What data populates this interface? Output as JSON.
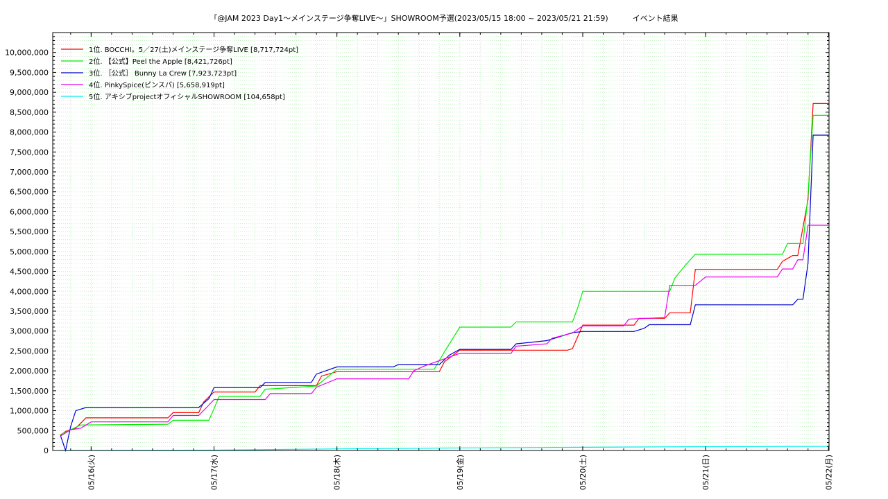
{
  "chart_data": {
    "type": "line",
    "title": "「@JAM 2023 Day1〜メインステージ争奪LIVE〜」SHOWROOM予選(2023/05/15 18:00 ~ 2023/05/21 21:59)          イベント結果",
    "xlabel": "",
    "ylabel": "",
    "x_range": [
      "2023-05-15 18:00",
      "2023-05-22 00:00"
    ],
    "ylim": [
      0,
      10500000
    ],
    "grid": true,
    "legend_position": "top-left",
    "y_ticks": [
      {
        "value": 0,
        "label": "0"
      },
      {
        "value": 500000,
        "label": "500,000"
      },
      {
        "value": 1000000,
        "label": "1,000,000"
      },
      {
        "value": 1500000,
        "label": "1,500,000"
      },
      {
        "value": 2000000,
        "label": "2,000,000"
      },
      {
        "value": 2500000,
        "label": "2,500,000"
      },
      {
        "value": 3000000,
        "label": "3,000,000"
      },
      {
        "value": 3500000,
        "label": "3,500,000"
      },
      {
        "value": 4000000,
        "label": "4,000,000"
      },
      {
        "value": 4500000,
        "label": "4,500,000"
      },
      {
        "value": 5000000,
        "label": "5,000,000"
      },
      {
        "value": 5500000,
        "label": "5,500,000"
      },
      {
        "value": 6000000,
        "label": "6,000,000"
      },
      {
        "value": 6500000,
        "label": "6,500,000"
      },
      {
        "value": 7000000,
        "label": "7,000,000"
      },
      {
        "value": 7500000,
        "label": "7,500,000"
      },
      {
        "value": 8000000,
        "label": "8,000,000"
      },
      {
        "value": 8500000,
        "label": "8,500,000"
      },
      {
        "value": 9000000,
        "label": "9,000,000"
      },
      {
        "value": 9500000,
        "label": "9,500,000"
      },
      {
        "value": 10000000,
        "label": "10,000,000"
      }
    ],
    "x_ticks": [
      {
        "x": "2023-05-16 00:00",
        "label": "05/16(火)"
      },
      {
        "x": "2023-05-17 00:00",
        "label": "05/17(水)"
      },
      {
        "x": "2023-05-18 00:00",
        "label": "05/18(木)"
      },
      {
        "x": "2023-05-19 00:00",
        "label": "05/19(金)"
      },
      {
        "x": "2023-05-20 00:00",
        "label": "05/20(土)"
      },
      {
        "x": "2023-05-21 00:00",
        "label": "05/21(日)"
      },
      {
        "x": "2023-05-22 00:00",
        "label": "05/22(月)"
      }
    ],
    "series": [
      {
        "name": "1位. BOCCHI。5／27(土)メインステージ争奪LIVE [8,717,724pt]",
        "color": "#ff0000",
        "points": [
          [
            "2023-05-15 18:00",
            380000
          ],
          [
            "2023-05-15 19:00",
            480000
          ],
          [
            "2023-05-15 21:00",
            560000
          ],
          [
            "2023-05-15 23:00",
            820000
          ],
          [
            "2023-05-16 15:00",
            820000
          ],
          [
            "2023-05-16 16:00",
            950000
          ],
          [
            "2023-05-16 21:00",
            950000
          ],
          [
            "2023-05-16 22:00",
            1220000
          ],
          [
            "2023-05-17 00:00",
            1470000
          ],
          [
            "2023-05-17 08:00",
            1470000
          ],
          [
            "2023-05-17 09:00",
            1630000
          ],
          [
            "2023-05-17 20:00",
            1630000
          ],
          [
            "2023-05-17 21:00",
            1870000
          ],
          [
            "2023-05-18 00:00",
            1980000
          ],
          [
            "2023-05-18 20:00",
            1980000
          ],
          [
            "2023-05-18 21:00",
            2230000
          ],
          [
            "2023-05-19 00:00",
            2520000
          ],
          [
            "2023-05-19 14:00",
            2520000
          ],
          [
            "2023-05-19 16:00",
            2520000
          ],
          [
            "2023-05-19 21:00",
            2520000
          ],
          [
            "2023-05-19 22:00",
            2560000
          ],
          [
            "2023-05-20 00:00",
            3150000
          ],
          [
            "2023-05-20 10:00",
            3150000
          ],
          [
            "2023-05-20 11:00",
            3320000
          ],
          [
            "2023-05-20 16:00",
            3320000
          ],
          [
            "2023-05-20 17:00",
            3460000
          ],
          [
            "2023-05-20 21:00",
            3460000
          ],
          [
            "2023-05-20 22:00",
            4550000
          ],
          [
            "2023-05-21 14:00",
            4550000
          ],
          [
            "2023-05-21 15:00",
            4750000
          ],
          [
            "2023-05-21 17:00",
            4900000
          ],
          [
            "2023-05-21 18:00",
            4900000
          ],
          [
            "2023-05-21 19:00",
            5600000
          ],
          [
            "2023-05-21 20:00",
            6300000
          ],
          [
            "2023-05-21 21:00",
            8717724
          ],
          [
            "2023-05-22 00:00",
            8717724
          ]
        ]
      },
      {
        "name": "2位. 【公式】Peel the Apple [8,421,726pt]",
        "color": "#00ee00",
        "points": [
          [
            "2023-05-15 18:00",
            400000
          ],
          [
            "2023-05-15 20:00",
            520000
          ],
          [
            "2023-05-15 22:00",
            640000
          ],
          [
            "2023-05-16 15:00",
            660000
          ],
          [
            "2023-05-16 16:00",
            760000
          ],
          [
            "2023-05-16 23:00",
            760000
          ],
          [
            "2023-05-17 00:00",
            1050000
          ],
          [
            "2023-05-17 01:00",
            1360000
          ],
          [
            "2023-05-17 09:00",
            1360000
          ],
          [
            "2023-05-17 10:00",
            1540000
          ],
          [
            "2023-05-17 20:00",
            1620000
          ],
          [
            "2023-05-18 00:00",
            2040000
          ],
          [
            "2023-05-18 19:00",
            2040000
          ],
          [
            "2023-05-18 21:00",
            2480000
          ],
          [
            "2023-05-19 00:00",
            3100000
          ],
          [
            "2023-05-19 10:00",
            3100000
          ],
          [
            "2023-05-19 11:00",
            3230000
          ],
          [
            "2023-05-19 22:00",
            3230000
          ],
          [
            "2023-05-19 23:00",
            3580000
          ],
          [
            "2023-05-20 00:00",
            4000000
          ],
          [
            "2023-05-20 17:00",
            4000000
          ],
          [
            "2023-05-20 18:00",
            4330000
          ],
          [
            "2023-05-20 20:00",
            4650000
          ],
          [
            "2023-05-20 22:00",
            4930000
          ],
          [
            "2023-05-21 15:00",
            4930000
          ],
          [
            "2023-05-21 16:00",
            5200000
          ],
          [
            "2023-05-21 19:00",
            5200000
          ],
          [
            "2023-05-21 20:00",
            6400000
          ],
          [
            "2023-05-21 21:00",
            8421726
          ],
          [
            "2023-05-22 00:00",
            8421726
          ]
        ]
      },
      {
        "name": "3位. ［公式］ Bunny La Crew [7,923,723pt]",
        "color": "#0000cc",
        "points": [
          [
            "2023-05-15 18:00",
            380000
          ],
          [
            "2023-05-15 19:00",
            0
          ],
          [
            "2023-05-15 20:00",
            600000
          ],
          [
            "2023-05-15 21:00",
            1000000
          ],
          [
            "2023-05-15 23:00",
            1080000
          ],
          [
            "2023-05-16 21:00",
            1080000
          ],
          [
            "2023-05-16 23:00",
            1300000
          ],
          [
            "2023-05-17 00:00",
            1580000
          ],
          [
            "2023-05-17 09:00",
            1580000
          ],
          [
            "2023-05-17 10:00",
            1710000
          ],
          [
            "2023-05-17 19:00",
            1710000
          ],
          [
            "2023-05-17 20:00",
            1920000
          ],
          [
            "2023-05-18 00:00",
            2100000
          ],
          [
            "2023-05-18 11:00",
            2100000
          ],
          [
            "2023-05-18 12:00",
            2160000
          ],
          [
            "2023-05-18 20:00",
            2160000
          ],
          [
            "2023-05-18 22:00",
            2400000
          ],
          [
            "2023-05-19 00:00",
            2540000
          ],
          [
            "2023-05-19 10:00",
            2540000
          ],
          [
            "2023-05-19 11:00",
            2680000
          ],
          [
            "2023-05-19 17:00",
            2760000
          ],
          [
            "2023-05-19 22:00",
            2960000
          ],
          [
            "2023-05-20 00:00",
            2990000
          ],
          [
            "2023-05-20 10:00",
            2990000
          ],
          [
            "2023-05-20 12:00",
            3070000
          ],
          [
            "2023-05-20 13:00",
            3160000
          ],
          [
            "2023-05-20 21:00",
            3160000
          ],
          [
            "2023-05-20 22:00",
            3660000
          ],
          [
            "2023-05-21 17:00",
            3660000
          ],
          [
            "2023-05-21 18:00",
            3800000
          ],
          [
            "2023-05-21 19:00",
            3800000
          ],
          [
            "2023-05-21 20:00",
            4700000
          ],
          [
            "2023-05-21 21:00",
            7923723
          ],
          [
            "2023-05-22 00:00",
            7923723
          ]
        ]
      },
      {
        "name": "4位. PinkySpice(ピンスパ) [5,658,919pt]",
        "color": "#ee00ee",
        "points": [
          [
            "2023-05-15 18:00",
            360000
          ],
          [
            "2023-05-15 20:00",
            520000
          ],
          [
            "2023-05-15 22:00",
            560000
          ],
          [
            "2023-05-16 00:00",
            720000
          ],
          [
            "2023-05-16 15:00",
            720000
          ],
          [
            "2023-05-16 16:00",
            880000
          ],
          [
            "2023-05-16 21:00",
            880000
          ],
          [
            "2023-05-16 23:00",
            1140000
          ],
          [
            "2023-05-17 00:00",
            1280000
          ],
          [
            "2023-05-17 10:00",
            1280000
          ],
          [
            "2023-05-17 11:00",
            1430000
          ],
          [
            "2023-05-17 19:00",
            1430000
          ],
          [
            "2023-05-17 20:00",
            1590000
          ],
          [
            "2023-05-18 00:00",
            1800000
          ],
          [
            "2023-05-18 14:00",
            1800000
          ],
          [
            "2023-05-18 15:00",
            2000000
          ],
          [
            "2023-05-18 17:00",
            2120000
          ],
          [
            "2023-05-19 00:00",
            2440000
          ],
          [
            "2023-05-19 10:00",
            2440000
          ],
          [
            "2023-05-19 11:00",
            2620000
          ],
          [
            "2023-05-19 17:00",
            2680000
          ],
          [
            "2023-05-19 18:00",
            2820000
          ],
          [
            "2023-05-19 22:00",
            2950000
          ],
          [
            "2023-05-20 00:00",
            3130000
          ],
          [
            "2023-05-20 08:00",
            3130000
          ],
          [
            "2023-05-20 09:00",
            3300000
          ],
          [
            "2023-05-20 16:00",
            3340000
          ],
          [
            "2023-05-20 17:00",
            4150000
          ],
          [
            "2023-05-20 22:00",
            4150000
          ],
          [
            "2023-05-21 00:00",
            4360000
          ],
          [
            "2023-05-21 14:00",
            4360000
          ],
          [
            "2023-05-21 15:00",
            4560000
          ],
          [
            "2023-05-21 17:00",
            4560000
          ],
          [
            "2023-05-21 18:00",
            4790000
          ],
          [
            "2023-05-21 19:00",
            4790000
          ],
          [
            "2023-05-21 20:00",
            5658919
          ],
          [
            "2023-05-22 00:00",
            5658919
          ]
        ]
      },
      {
        "name": "5位. アキシブprojectオフィシャルSHOWROOM [104,658pt]",
        "color": "#00eeee",
        "points": [
          [
            "2023-05-15 18:00",
            0
          ],
          [
            "2023-05-17 00:00",
            8000
          ],
          [
            "2023-05-18 00:00",
            40000
          ],
          [
            "2023-05-19 00:00",
            65000
          ],
          [
            "2023-05-20 00:00",
            80000
          ],
          [
            "2023-05-21 00:00",
            95000
          ],
          [
            "2023-05-22 00:00",
            104658
          ]
        ]
      }
    ]
  }
}
